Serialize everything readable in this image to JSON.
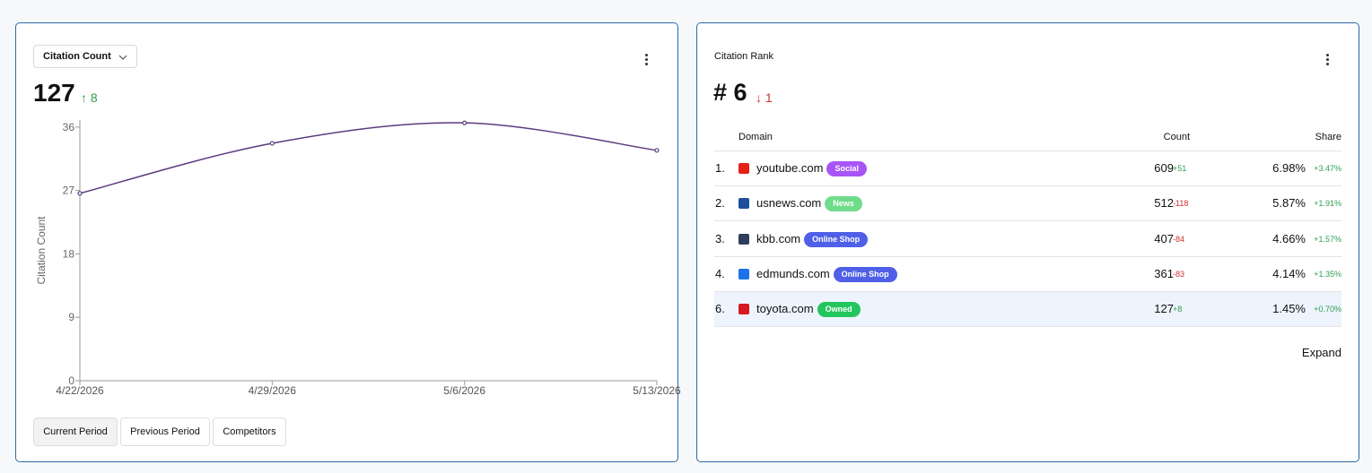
{
  "left_card": {
    "dropdown": "Citation Count",
    "metric": "127",
    "delta": "↑ 8",
    "buttons": [
      "Current Period",
      "Previous Period",
      "Competitors"
    ]
  },
  "chart_data": {
    "type": "line",
    "y_label": "Citation Count",
    "x": [
      "4/22/2026",
      "4/29/2026",
      "5/6/2026",
      "5/13/2026"
    ],
    "series": [
      {
        "name": "Citation Count",
        "color": "#5b3a7e",
        "values": [
          26.6,
          33.7,
          36.6,
          32.7
        ]
      }
    ],
    "ylim": [
      0,
      37
    ],
    "yticks": [
      0,
      9,
      18,
      27,
      36
    ],
    "grid": false
  },
  "right_card": {
    "title": "Citation Rank",
    "rank": "# 6",
    "delta": "↓ 1",
    "columns": [
      "Domain",
      "Count",
      "Share"
    ],
    "rows": [
      {
        "rank": "1.",
        "domain": "youtube.com",
        "tag": "Social",
        "tag_color": "#a855f7",
        "icon_color": "#e62117",
        "count": "609",
        "count_delta": "+51",
        "share": "6.98%",
        "share_delta": "+3.47%"
      },
      {
        "rank": "2.",
        "domain": "usnews.com",
        "tag": "News",
        "tag_color": "#6fdc8c",
        "icon_color": "#1f4e9c",
        "count": "512",
        "count_delta": "-118",
        "share": "5.87%",
        "share_delta": "+1.91%"
      },
      {
        "rank": "3.",
        "domain": "kbb.com",
        "tag": "Online Shop",
        "tag_color": "#4f5fe8",
        "icon_color": "#2f3e5c",
        "count": "407",
        "count_delta": "-84",
        "share": "4.66%",
        "share_delta": "+1.57%"
      },
      {
        "rank": "4.",
        "domain": "edmunds.com",
        "tag": "Online Shop",
        "tag_color": "#4f5fe8",
        "icon_color": "#1a73e8",
        "count": "361",
        "count_delta": "-83",
        "share": "4.14%",
        "share_delta": "+1.35%"
      },
      {
        "rank": "6.",
        "domain": "toyota.com",
        "tag": "Owned",
        "tag_color": "#22c55e",
        "icon_color": "#d71920",
        "count": "127",
        "count_delta": "+8",
        "share": "1.45%",
        "share_delta": "+0.70%"
      }
    ],
    "highlight_row": 4,
    "expand": "Expand"
  }
}
